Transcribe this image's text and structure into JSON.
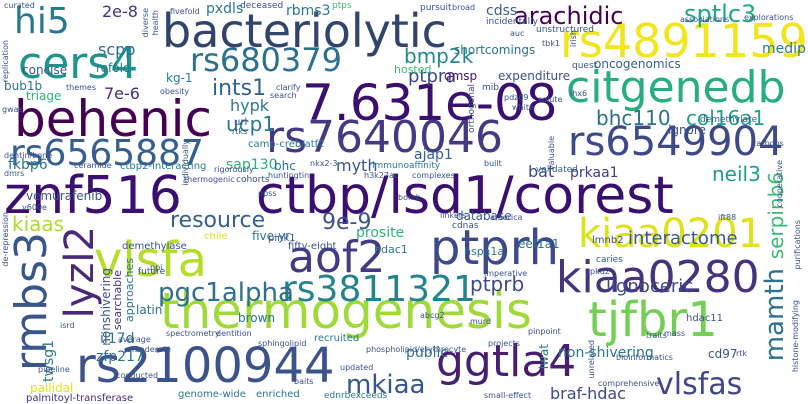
{
  "words": {
    "znf516": "znf516",
    "ctbp_lsd1_corest": "ctbp/lsd1/corest",
    "bacteriolytic": "bacteriolytic",
    "rs4891159": "rs4891159",
    "behenic": "behenic",
    "val_7_631e_08": "7.631e-08",
    "citgenedb": "citgenedb",
    "rs7640046": "rs7640046",
    "rs6565887": "rs6565887",
    "rs6549904": "rs6549904",
    "cers4": "cers4",
    "hi5": "hi5",
    "vlsfa": "vlsfa",
    "ptprh": "ptprh",
    "kiaa0201": "kiaa0201",
    "aof2": "aof2",
    "kiaa0280": "kiaa0280",
    "rmbs3": "rmbs3",
    "lyzl2": "lyzl2",
    "thermogenesis": "thermogenesis",
    "tjfbr1": "tjfbr1",
    "rs2100944": "rs2100944",
    "ggtla4": "ggtla4",
    "rs3811321": "rs3811321",
    "rs680379": "rs680379",
    "pgc1alpha": "pgc1alpha",
    "mkiaa": "mkiaa",
    "vlsfas": "vlsfas",
    "mamth": "mamth",
    "arachidic": "arachidic",
    "sptlc3": "sptlc3",
    "bmp2k": "bmp2k",
    "bhc110": "bhc110",
    "col16a1": "col16a1",
    "neil3": "neil3",
    "serpinb6": "serpinb6",
    "ucp1": "ucp1",
    "ints1": "ints1",
    "resource": "resource",
    "val_9e_9": "9e-9",
    "kiaas": "kiaas",
    "ptprb": "ptprb",
    "ptpra": "ptpra",
    "braf_hdac": "braf-hdac",
    "interactome": "interactome",
    "lignoceric": "lignoceric",
    "medip": "medip",
    "scpp": "scpp",
    "val_2e_8": "2e-8",
    "val_7e_6": "7e-6",
    "hypk": "hypk",
    "bat": "bat",
    "prkaa1": "prkaa1",
    "sap130": "sap130",
    "fkbp6": "fkbp6",
    "prosite": "prosite",
    "myth": "myth",
    "ajap1": "ajap1",
    "cdss": "cdss",
    "rbms3": "rbms3",
    "pxdls": "pxdls",
    "oncogenomics": "oncogenomics",
    "expenditure": "expenditure",
    "shortcomings": "shortcomings",
    "hosted": "hosted",
    "qmsp": "qmsp",
    "refold": "refold",
    "concise": "concise",
    "bub1b": "bub1b",
    "triage": "triage",
    "kg_1": "kg-1",
    "ignore": "ignore",
    "demethylate": "demethylate",
    "validated": "validated",
    "bhc": "bhc",
    "vemurafenib": "vemurafenib",
    "database": "database",
    "five_yr": "five-yr",
    "pink1": "pink1",
    "fifty_eight": "fifty-eight",
    "hdac1": "hdac1",
    "hspa1a": "hspa1a",
    "eef1a1": "eef1a1",
    "lmnb2": "lmnb2",
    "demethylase": "demethylase",
    "chile": "chile",
    "nonshivering": "nonshivering",
    "searchable": "searchable",
    "approaches": "approaches",
    "latin": "latin",
    "brown": "brown",
    "il17d": "il17d",
    "zfp217": "zfp217",
    "twsg1": "twsg1",
    "non_shivering": "non-shivering",
    "hdac11": "hdac11",
    "cd97": "cd97",
    "iwat": "iwat",
    "public": "public",
    "pallidal": "pallidal",
    "recruited": "recruited",
    "enriched": "enriched",
    "genome_wide": "genome-wide",
    "palmitoyl_transferase": "palmitoyl-transferase",
    "ednrbexceeds": "ednrbexceeds",
    "camp_creb_atf2": "camp-creb/atf2",
    "ctbp2_interacting": "ctbp2-interacting",
    "immunoaffinity": "immunoaffinity",
    "deceased": "deceased",
    "ptps": "ptps",
    "pursuit": "pursuit",
    "incidentally": "incidentally",
    "unstructured": "unstructured",
    "associations": "associations",
    "explorations": "explorations",
    "rtks": "rtks",
    "url": "url",
    "future": "future",
    "cohorts": "cohorts",
    "huntingtin": "huntingtin",
    "caries": "caries",
    "pkd2": "pkd2",
    "ift88": "ift88",
    "cdnas": "cdnas",
    "pipeline": "pipeline",
    "conducted": "conducted",
    "average": "average",
    "projects": "projects",
    "comprehensive": "comprehensive",
    "bioinformatics": "bioinformatics",
    "sphingolipid": "sphingolipid",
    "phospholipid_erythrocyte": "phospholipid/erythrocyte",
    "spectrometry": "spectrometry",
    "dentition": "dentition",
    "linkers": "linkers",
    "america": "america",
    "imperative": "imperative",
    "carbons": "carbons",
    "orthogonal": "orthogonal",
    "mib": "mib",
    "clarify": "clarify",
    "white": "white",
    "pdzd9": "pdzd9",
    "obesity": "obesity",
    "nkx2_3": "nkx2-3",
    "h3k27ac": "h3k27ac",
    "v600e": "v600e",
    "ceramide": "ceramide",
    "dmrs": "dmrs",
    "gwas": "gwas",
    "themes": "themes",
    "replication": "replication",
    "curated": "curated",
    "diverse": "diverse",
    "health": "health",
    "fivefold": "fivefold",
    "broad": "broad",
    "irish": "irish",
    "tbk1": "tbk1",
    "quest": "quest",
    "rtk": "rtk",
    "valuable": "valuable",
    "murd": "murd",
    "traits": "traits",
    "unrelated": "unrelated",
    "mass": "mass",
    "rigorously": "rigorously",
    "thermogenic": "thermogenic",
    "ppss": "ppss",
    "bomb": "bomb",
    "built": "built",
    "pinpoint": "pinpoint",
    "updated": "updated",
    "baits": "baits",
    "small_effect": "small-effect",
    "moderate": "moderate",
    "isrd": "isrd",
    "abcg2": "abcg2",
    "complexes": "complexes",
    "purifications": "purifications",
    "histone_modifying": "histone-modifying",
    "lhx6": "lhx6",
    "auc": "auc",
    "de_repression": "de-repression",
    "search": "search",
    "solute": "solute",
    "individually": "individually",
    "dentin_bone": "dentin/bone",
    "cooperative": "cooperative",
    "ppi": "ppi"
  }
}
